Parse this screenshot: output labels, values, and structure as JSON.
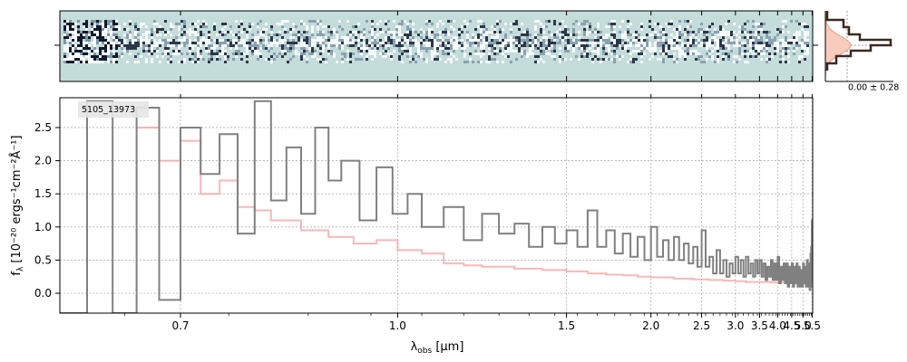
{
  "chart_data": [
    {
      "type": "heatmap",
      "panel": "2d-spectrum",
      "colors": {
        "background": "#c4dcda",
        "dark": "#0f1a2e",
        "mid": "#7f97a8",
        "light": "#ffffff"
      }
    },
    {
      "type": "line",
      "panel": "noise-histogram",
      "annotation": "0.00 ± 0.28",
      "colors": {
        "histogram": "#3b2a22",
        "gaussian": "#e9967a",
        "fill": "#f9cbbd"
      }
    },
    {
      "type": "line",
      "panel": "1d-spectrum",
      "label": "5105_13973",
      "xlabel_main": "λ",
      "xlabel_sub": "obs",
      "xlabel_unit": " [μm]",
      "ylabel": "f",
      "ylabel_sub": "λ",
      "ylabel_unit": " [10⁻²⁰ ergs⁻¹cm⁻²Å⁻¹]",
      "xscale": "reciprocal",
      "xlim": [
        0.6,
        5.53
      ],
      "ylim": [
        -0.3,
        2.95
      ],
      "xticks": [
        {
          "v": 0.7,
          "label": "0.7"
        },
        {
          "v": 1.0,
          "label": "1.0"
        },
        {
          "v": 1.5,
          "label": "1.5"
        },
        {
          "v": 2.0,
          "label": "2.0"
        },
        {
          "v": 2.5,
          "label": "2.5"
        },
        {
          "v": 3.0,
          "label": "3.0"
        },
        {
          "v": 3.5,
          "label": "3.5"
        },
        {
          "v": 4.0,
          "label": "4.0"
        },
        {
          "v": 4.5,
          "label": "4.5"
        },
        {
          "v": 5.0,
          "label": "5.0"
        },
        {
          "v": 5.5,
          "label": "5.5"
        }
      ],
      "yticks": [
        {
          "v": 0.0,
          "label": "0.0"
        },
        {
          "v": 0.5,
          "label": "0.5"
        },
        {
          "v": 1.0,
          "label": "1.0"
        },
        {
          "v": 1.5,
          "label": "1.5"
        },
        {
          "v": 2.0,
          "label": "2.0"
        },
        {
          "v": 2.5,
          "label": "2.5"
        }
      ],
      "grid": true,
      "series": [
        {
          "role": "observed-flux",
          "color": "#808080",
          "points": [
            [
              0.6,
              -0.3
            ],
            [
              0.62,
              2.9
            ],
            [
              0.64,
              -0.3
            ],
            [
              0.66,
              2.8
            ],
            [
              0.68,
              -0.1
            ],
            [
              0.7,
              2.5
            ],
            [
              0.72,
              1.8
            ],
            [
              0.74,
              2.4
            ],
            [
              0.76,
              0.9
            ],
            [
              0.78,
              2.9
            ],
            [
              0.8,
              1.4
            ],
            [
              0.82,
              2.2
            ],
            [
              0.84,
              1.2
            ],
            [
              0.86,
              2.5
            ],
            [
              0.88,
              1.7
            ],
            [
              0.9,
              2.0
            ],
            [
              0.93,
              1.1
            ],
            [
              0.96,
              1.9
            ],
            [
              0.99,
              1.2
            ],
            [
              1.02,
              1.5
            ],
            [
              1.05,
              1.0
            ],
            [
              1.1,
              1.3
            ],
            [
              1.15,
              0.8
            ],
            [
              1.2,
              1.2
            ],
            [
              1.25,
              0.9
            ],
            [
              1.3,
              1.05
            ],
            [
              1.35,
              0.7
            ],
            [
              1.4,
              1.0
            ],
            [
              1.45,
              0.75
            ],
            [
              1.5,
              0.95
            ],
            [
              1.55,
              0.7
            ],
            [
              1.6,
              1.25
            ],
            [
              1.65,
              0.7
            ],
            [
              1.7,
              0.95
            ],
            [
              1.75,
              0.6
            ],
            [
              1.8,
              0.9
            ],
            [
              1.85,
              0.55
            ],
            [
              1.9,
              0.85
            ],
            [
              1.95,
              0.5
            ],
            [
              2.0,
              1.0
            ],
            [
              2.05,
              0.55
            ],
            [
              2.1,
              0.8
            ],
            [
              2.15,
              0.5
            ],
            [
              2.2,
              0.85
            ],
            [
              2.25,
              0.5
            ],
            [
              2.3,
              0.75
            ],
            [
              2.35,
              0.45
            ],
            [
              2.4,
              0.7
            ],
            [
              2.45,
              0.4
            ],
            [
              2.5,
              0.95
            ],
            [
              2.55,
              0.4
            ],
            [
              2.6,
              0.55
            ],
            [
              2.65,
              0.3
            ],
            [
              2.7,
              0.65
            ],
            [
              2.75,
              0.3
            ],
            [
              2.8,
              0.5
            ],
            [
              2.85,
              0.25
            ],
            [
              2.9,
              0.45
            ],
            [
              2.95,
              0.3
            ],
            [
              3.0,
              0.55
            ],
            [
              3.05,
              0.3
            ],
            [
              3.1,
              0.5
            ],
            [
              3.15,
              0.25
            ],
            [
              3.2,
              0.55
            ],
            [
              3.25,
              0.3
            ],
            [
              3.3,
              0.45
            ],
            [
              3.35,
              0.25
            ],
            [
              3.4,
              0.5
            ],
            [
              3.45,
              0.3
            ],
            [
              3.5,
              0.5
            ],
            [
              3.55,
              0.25
            ],
            [
              3.6,
              0.45
            ],
            [
              3.65,
              0.2
            ],
            [
              3.7,
              0.4
            ],
            [
              3.75,
              0.25
            ],
            [
              3.8,
              0.5
            ],
            [
              3.85,
              0.2
            ],
            [
              3.9,
              0.45
            ],
            [
              3.95,
              0.2
            ],
            [
              4.0,
              0.55
            ],
            [
              4.05,
              0.15
            ],
            [
              4.1,
              0.4
            ],
            [
              4.15,
              0.2
            ],
            [
              4.2,
              0.45
            ],
            [
              4.25,
              0.15
            ],
            [
              4.3,
              0.45
            ],
            [
              4.35,
              0.1
            ],
            [
              4.4,
              0.4
            ],
            [
              4.45,
              0.15
            ],
            [
              4.5,
              0.45
            ],
            [
              4.55,
              0.1
            ],
            [
              4.6,
              0.4
            ],
            [
              4.65,
              0.15
            ],
            [
              4.7,
              0.45
            ],
            [
              4.75,
              0.1
            ],
            [
              4.8,
              0.4
            ],
            [
              4.85,
              0.1
            ],
            [
              4.9,
              0.35
            ],
            [
              4.95,
              0.1
            ],
            [
              5.0,
              0.45
            ],
            [
              5.05,
              0.15
            ],
            [
              5.1,
              0.4
            ],
            [
              5.15,
              0.1
            ],
            [
              5.2,
              0.5
            ],
            [
              5.25,
              0.1
            ],
            [
              5.3,
              0.45
            ],
            [
              5.35,
              0.05
            ],
            [
              5.4,
              0.6
            ],
            [
              5.42,
              0.1
            ],
            [
              5.44,
              0.7
            ],
            [
              5.46,
              0.2
            ],
            [
              5.48,
              1.1
            ],
            [
              5.5,
              0.3
            ]
          ]
        },
        {
          "role": "model",
          "color": "#f4a6a6",
          "points": [
            [
              0.66,
              2.5
            ],
            [
              0.68,
              2.0
            ],
            [
              0.7,
              2.3
            ],
            [
              0.72,
              1.5
            ],
            [
              0.74,
              1.7
            ],
            [
              0.76,
              1.3
            ],
            [
              0.78,
              1.25
            ],
            [
              0.8,
              1.1
            ],
            [
              0.84,
              0.95
            ],
            [
              0.88,
              0.85
            ],
            [
              0.92,
              0.75
            ],
            [
              0.96,
              0.8
            ],
            [
              1.0,
              0.65
            ],
            [
              1.05,
              0.6
            ],
            [
              1.1,
              0.45
            ],
            [
              1.15,
              0.42
            ],
            [
              1.2,
              0.4
            ],
            [
              1.3,
              0.37
            ],
            [
              1.4,
              0.35
            ],
            [
              1.5,
              0.33
            ],
            [
              1.6,
              0.3
            ],
            [
              1.7,
              0.28
            ],
            [
              1.8,
              0.27
            ],
            [
              1.9,
              0.25
            ],
            [
              2.0,
              0.24
            ],
            [
              2.2,
              0.22
            ],
            [
              2.4,
              0.21
            ],
            [
              2.6,
              0.2
            ],
            [
              2.8,
              0.19
            ],
            [
              3.0,
              0.18
            ],
            [
              3.2,
              0.17
            ],
            [
              3.4,
              0.17
            ],
            [
              3.6,
              0.17
            ],
            [
              3.8,
              0.16
            ],
            [
              4.0,
              0.16
            ],
            [
              4.2,
              0.17
            ],
            [
              4.4,
              0.18
            ],
            [
              4.6,
              0.2
            ],
            [
              4.8,
              0.23
            ],
            [
              5.0,
              0.26
            ],
            [
              5.2,
              0.3
            ],
            [
              5.3,
              0.35
            ],
            [
              5.4,
              0.45
            ],
            [
              5.45,
              0.5
            ],
            [
              5.48,
              0.6
            ],
            [
              5.5,
              0.7
            ]
          ]
        }
      ]
    }
  ]
}
